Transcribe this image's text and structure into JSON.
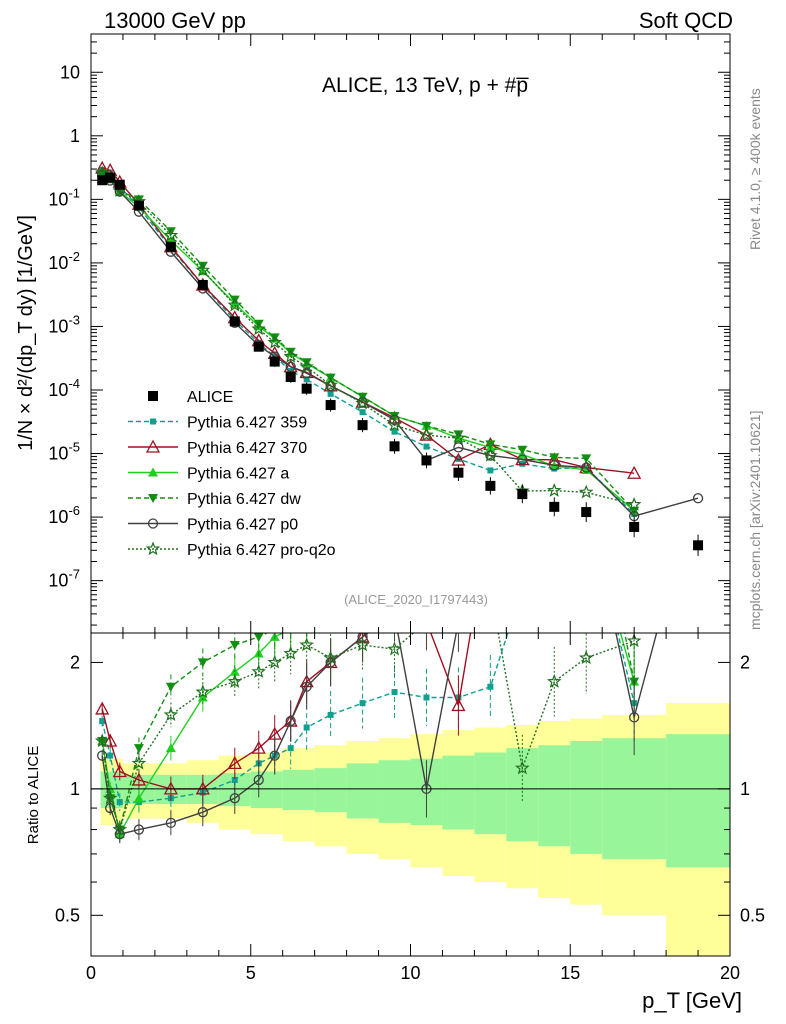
{
  "header": {
    "left": "13000 GeV pp",
    "right": "Soft QCD"
  },
  "side_text": {
    "rivet": "Rivet 4.1.0, ≥ 400k events",
    "mcplots": "mcplots.cern.ch [arXiv:2401.10621]"
  },
  "chart_data": {
    "type": "line",
    "title": "ALICE, 13 TeV, p + #p̅",
    "analysis_tag": "(ALICE_2020_I1797443)",
    "xlabel": "p_T [GeV]",
    "ylabel_main": "1/N × d²/(dp_T dy) [1/GeV]",
    "ylabel_ratio": "Ratio to ALICE",
    "xlim": [
      0,
      20
    ],
    "ylim_main": [
      1.5e-08,
      40
    ],
    "ylim_ratio": [
      0.4,
      2.35
    ],
    "yscale_main": "log",
    "yscale_ratio": "log",
    "x_ticks": [
      0,
      5,
      10,
      15,
      20
    ],
    "y_ticks_main": [
      {
        "v": 1e-07,
        "label": "10^-7"
      },
      {
        "v": 1e-06,
        "label": "10^-6"
      },
      {
        "v": 1e-05,
        "label": "10^-5"
      },
      {
        "v": 0.0001,
        "label": "10^-4"
      },
      {
        "v": 0.001,
        "label": "10^-3"
      },
      {
        "v": 0.01,
        "label": "10^-2"
      },
      {
        "v": 0.1,
        "label": "10^-1"
      },
      {
        "v": 1,
        "label": "1"
      },
      {
        "v": 10,
        "label": "10"
      }
    ],
    "y_ticks_ratio": [
      {
        "v": 0.5,
        "label": "0.5"
      },
      {
        "v": 1,
        "label": "1"
      },
      {
        "v": 2,
        "label": "2"
      }
    ],
    "legend_position": "middle-left",
    "data": {
      "name": "ALICE",
      "x": [
        0.35,
        0.6,
        0.9,
        1.5,
        2.5,
        3.5,
        4.5,
        5.25,
        5.75,
        6.25,
        6.75,
        7.5,
        8.5,
        9.5,
        10.5,
        11.5,
        12.5,
        13.5,
        14.5,
        15.5,
        17.0,
        19.0
      ],
      "y": [
        0.2,
        0.22,
        0.17,
        0.08,
        0.018,
        0.0045,
        0.0012,
        0.00048,
        0.00028,
        0.00016,
        0.000105,
        5.8e-05,
        2.8e-05,
        1.3e-05,
        7.8e-06,
        5e-06,
        3.1e-06,
        2.3e-06,
        1.45e-06,
        1.2e-06,
        7e-07,
        3.6e-07
      ]
    },
    "series": [
      {
        "name": "Pythia 6.427 359",
        "color": "#10a090",
        "line": "dashed",
        "marker": "square-small",
        "x": [
          0.35,
          0.6,
          0.9,
          1.5,
          2.5,
          3.5,
          4.5,
          5.25,
          5.75,
          6.25,
          6.75,
          7.5,
          8.5,
          9.5,
          10.5,
          11.5,
          12.5,
          13.5,
          14.5,
          15.5,
          17.0
        ],
        "ratio": [
          1.45,
          1.2,
          0.93,
          0.93,
          0.95,
          0.98,
          1.05,
          1.15,
          1.2,
          1.25,
          1.4,
          1.5,
          1.6,
          1.7,
          1.65,
          1.65,
          1.75,
          3.0,
          4.0,
          5.0,
          1.6
        ]
      },
      {
        "name": "Pythia 6.427 370",
        "color": "#a01020",
        "line": "solid",
        "marker": "triangle-open",
        "x": [
          0.35,
          0.6,
          0.9,
          1.5,
          2.5,
          3.5,
          4.5,
          5.25,
          5.75,
          6.25,
          6.75,
          7.5,
          8.5,
          9.5,
          10.5,
          11.5,
          12.5,
          13.5,
          14.5,
          15.5,
          17.0
        ],
        "ratio": [
          1.55,
          1.3,
          1.1,
          1.05,
          1.0,
          1.0,
          1.15,
          1.25,
          1.35,
          1.45,
          1.8,
          2.0,
          2.3,
          2.8,
          2.5,
          1.58,
          4.5,
          3.5,
          5.5,
          5.0,
          7.0
        ]
      },
      {
        "name": "Pythia 6.427 a",
        "color": "#20d020",
        "line": "solid",
        "marker": "triangle",
        "x": [
          0.35,
          0.6,
          0.9,
          1.5,
          2.5,
          3.5,
          4.5,
          5.25,
          5.75,
          6.25,
          6.75,
          7.5,
          8.5,
          9.5,
          10.5,
          11.5,
          12.5,
          13.5,
          14.5,
          15.5,
          17.0
        ],
        "ratio": [
          1.3,
          1.0,
          0.78,
          0.95,
          1.25,
          1.65,
          1.9,
          2.1,
          2.3,
          2.4,
          2.5,
          2.7,
          2.8,
          3.0,
          3.5,
          3.5,
          4.0,
          4.2,
          4.4,
          4.6,
          1.8
        ]
      },
      {
        "name": "Pythia 6.427 dw",
        "color": "#109010",
        "line": "dashed",
        "marker": "triangle-down",
        "x": [
          0.35,
          0.6,
          0.9,
          1.5,
          2.5,
          3.5,
          4.5,
          5.25,
          5.75,
          6.25,
          6.75,
          7.5,
          8.5,
          9.5,
          10.5,
          11.5,
          12.5,
          13.5,
          14.5,
          15.5,
          17.0
        ],
        "ratio": [
          1.3,
          0.95,
          0.8,
          1.25,
          1.75,
          2.0,
          2.2,
          2.3,
          2.4,
          2.5,
          2.6,
          2.7,
          2.8,
          3.0,
          3.5,
          4.0,
          4.5,
          5.0,
          6.0,
          7.0,
          1.8
        ]
      },
      {
        "name": "Pythia 6.427 p0",
        "color": "#404040",
        "line": "solid",
        "marker": "circle-open",
        "x": [
          0.35,
          0.6,
          0.9,
          1.5,
          2.5,
          3.5,
          4.5,
          5.25,
          5.75,
          6.25,
          6.75,
          7.5,
          8.5,
          9.5,
          10.5,
          11.5,
          12.5,
          13.5,
          14.5,
          15.5,
          17.0,
          19.0
        ],
        "ratio": [
          1.2,
          0.9,
          0.78,
          0.8,
          0.83,
          0.88,
          0.95,
          1.05,
          1.2,
          1.45,
          1.75,
          2.0,
          2.3,
          2.6,
          1.0,
          2.5,
          3.0,
          3.5,
          4.5,
          5.0,
          1.48,
          5.5
        ]
      },
      {
        "name": "Pythia 6.427 pro-q2o",
        "color": "#207020",
        "line": "dotted",
        "marker": "star-open",
        "x": [
          0.35,
          0.6,
          0.9,
          1.5,
          2.5,
          3.5,
          4.5,
          5.25,
          5.75,
          6.25,
          6.75,
          7.5,
          8.5,
          9.5,
          10.5,
          11.5,
          12.5,
          13.5,
          14.5,
          15.5,
          17.0
        ],
        "ratio": [
          1.3,
          0.95,
          0.8,
          1.15,
          1.5,
          1.7,
          1.8,
          1.9,
          2.0,
          2.1,
          2.2,
          2.05,
          2.2,
          2.15,
          2.5,
          3.5,
          3.0,
          1.12,
          1.8,
          2.05,
          2.25
        ]
      }
    ],
    "uncertainty_bands": {
      "x_edges": [
        0.3,
        1,
        2,
        3,
        4,
        5,
        6,
        7,
        8,
        9,
        10,
        11,
        12,
        13,
        14,
        15,
        16,
        18,
        20
      ],
      "inner_rel": [
        0.1,
        0.08,
        0.08,
        0.08,
        0.09,
        0.1,
        0.11,
        0.12,
        0.15,
        0.17,
        0.18,
        0.2,
        0.22,
        0.25,
        0.27,
        0.3,
        0.32,
        0.35
      ],
      "outer_rel": [
        0.18,
        0.15,
        0.15,
        0.17,
        0.2,
        0.22,
        0.25,
        0.27,
        0.3,
        0.32,
        0.35,
        0.38,
        0.4,
        0.42,
        0.45,
        0.47,
        0.5,
        0.6
      ],
      "inner_color": "#99f599",
      "outer_color": "#ffff99"
    }
  }
}
